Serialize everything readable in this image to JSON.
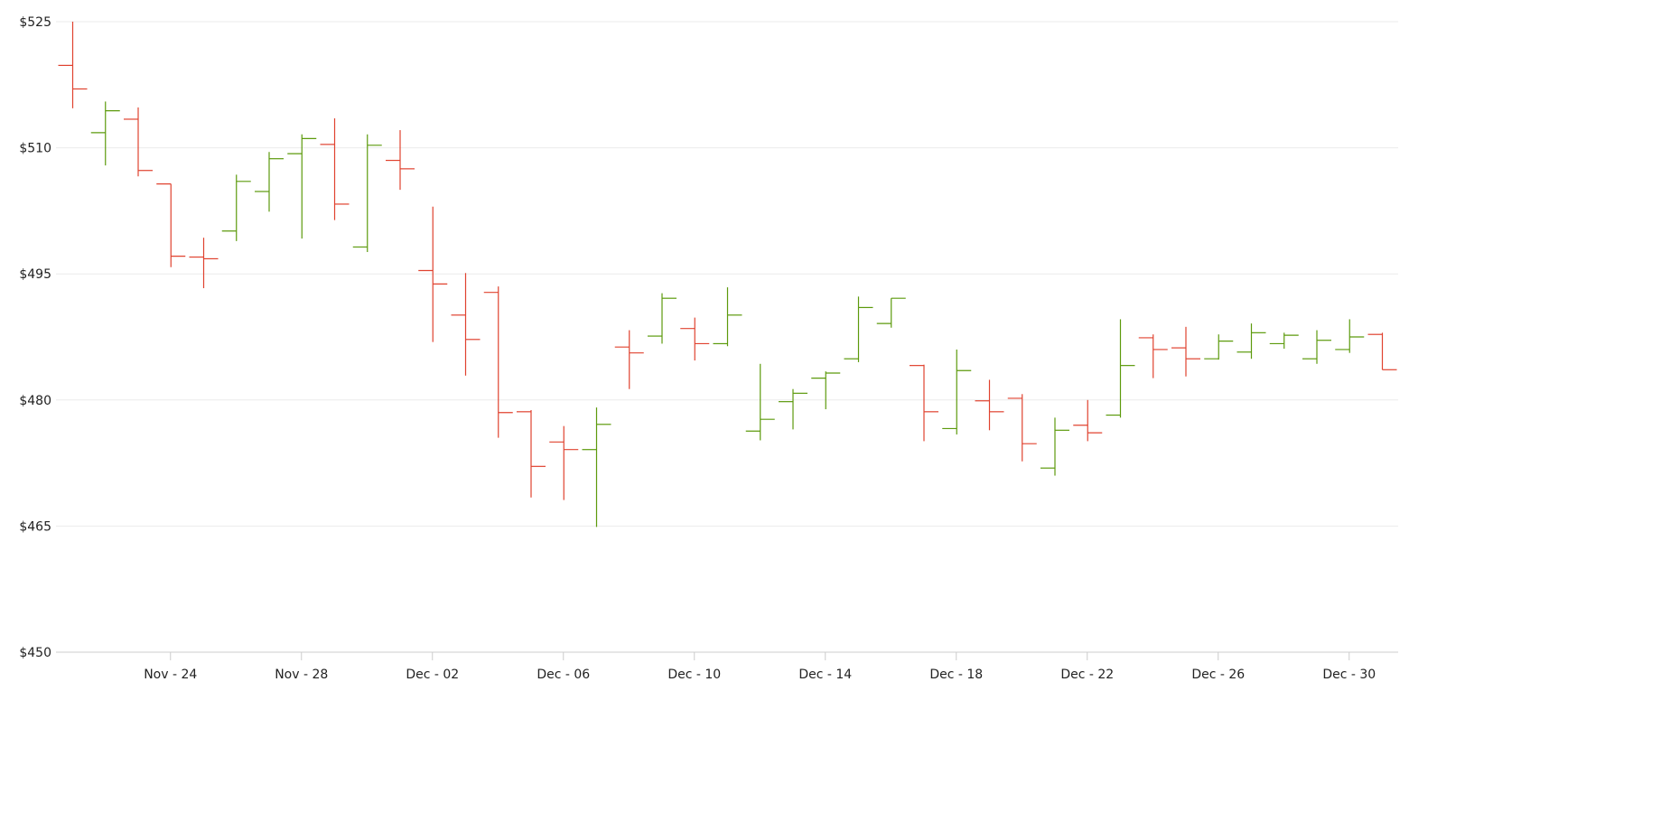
{
  "chart_data": {
    "type": "ohlc",
    "title": "",
    "xlabel": "",
    "ylabel": "",
    "ylim": [
      450,
      525
    ],
    "y_ticks": [
      "$450",
      "$465",
      "$480",
      "$495",
      "$510",
      "$525"
    ],
    "y_tick_values": [
      450,
      465,
      480,
      495,
      510,
      525
    ],
    "x_tick_labels": [
      "Nov - 24",
      "Nov - 28",
      "Dec - 02",
      "Dec - 06",
      "Dec - 10",
      "Dec - 14",
      "Dec - 18",
      "Dec - 22",
      "Dec - 26",
      "Dec - 30"
    ],
    "x_tick_day_index": [
      3,
      7,
      11,
      15,
      19,
      23,
      27,
      31,
      35,
      39
    ],
    "grid": true,
    "colors": {
      "up": "#5c9a0c",
      "down": "#e0422f",
      "grid": "#ebebeb",
      "axis": "#cccccc"
    },
    "dates": [
      "Nov 21",
      "Nov 22",
      "Nov 23",
      "Nov 24",
      "Nov 25",
      "Nov 26",
      "Nov 27",
      "Nov 28",
      "Nov 29",
      "Nov 30",
      "Dec 01",
      "Dec 02",
      "Dec 03",
      "Dec 04",
      "Dec 05",
      "Dec 06",
      "Dec 07",
      "Dec 08",
      "Dec 09",
      "Dec 10",
      "Dec 11",
      "Dec 12",
      "Dec 13",
      "Dec 14",
      "Dec 15",
      "Dec 16",
      "Dec 17",
      "Dec 18",
      "Dec 19",
      "Dec 20",
      "Dec 21",
      "Dec 22",
      "Dec 23",
      "Dec 24",
      "Dec 25",
      "Dec 26",
      "Dec 27",
      "Dec 28",
      "Dec 29",
      "Dec 30",
      "Dec 31"
    ],
    "ohlc": [
      [
        519.8,
        525.0,
        514.7,
        517.0
      ],
      [
        511.8,
        515.5,
        507.9,
        514.4
      ],
      [
        513.4,
        514.8,
        506.6,
        507.3
      ],
      [
        505.7,
        505.7,
        495.8,
        497.1
      ],
      [
        497.0,
        499.3,
        493.3,
        496.8
      ],
      [
        500.1,
        506.8,
        498.9,
        506.0
      ],
      [
        504.8,
        509.5,
        502.4,
        508.7
      ],
      [
        509.3,
        511.6,
        499.2,
        511.1
      ],
      [
        510.4,
        513.5,
        501.4,
        503.3
      ],
      [
        498.2,
        511.6,
        497.6,
        510.3
      ],
      [
        508.5,
        512.1,
        505.0,
        507.5
      ],
      [
        495.4,
        503.0,
        486.9,
        493.8
      ],
      [
        490.1,
        495.1,
        482.9,
        487.2
      ],
      [
        492.8,
        493.5,
        475.5,
        478.5
      ],
      [
        478.6,
        478.8,
        468.4,
        472.1
      ],
      [
        475.0,
        476.9,
        468.1,
        474.1
      ],
      [
        474.1,
        479.1,
        464.9,
        477.1
      ],
      [
        486.3,
        488.3,
        481.3,
        485.6
      ],
      [
        487.6,
        492.7,
        486.7,
        492.1
      ],
      [
        488.5,
        489.8,
        484.7,
        486.7
      ],
      [
        486.7,
        493.4,
        486.4,
        490.1
      ],
      [
        476.3,
        484.3,
        475.2,
        477.7
      ],
      [
        479.8,
        481.3,
        476.5,
        480.8
      ],
      [
        482.6,
        483.4,
        478.9,
        483.2
      ],
      [
        484.9,
        492.3,
        484.5,
        491.0
      ],
      [
        489.1,
        492.1,
        488.6,
        492.1
      ],
      [
        484.1,
        484.2,
        475.1,
        478.6
      ],
      [
        476.6,
        486.0,
        475.9,
        483.5
      ],
      [
        479.9,
        482.4,
        476.4,
        478.6
      ],
      [
        480.2,
        480.7,
        472.7,
        474.8
      ],
      [
        471.9,
        477.9,
        471.0,
        476.4
      ],
      [
        477.0,
        480.0,
        475.1,
        476.1
      ],
      [
        478.2,
        489.6,
        477.9,
        484.1
      ],
      [
        487.4,
        487.8,
        482.6,
        486.0
      ],
      [
        486.2,
        488.7,
        482.8,
        484.9
      ],
      [
        484.9,
        487.8,
        484.8,
        487.0
      ],
      [
        485.7,
        489.1,
        484.9,
        488.0
      ],
      [
        486.7,
        488.0,
        486.1,
        487.7
      ],
      [
        484.9,
        488.3,
        484.3,
        487.1
      ],
      [
        486.0,
        489.6,
        485.6,
        487.5
      ],
      [
        487.8,
        488.0,
        483.6,
        483.6
      ]
    ]
  }
}
